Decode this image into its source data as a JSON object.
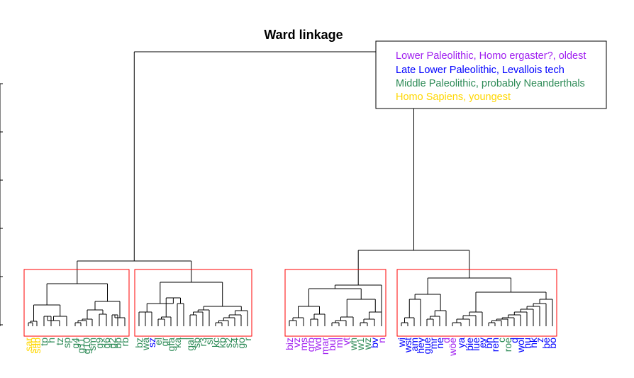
{
  "chart_data": {
    "type": "dendrogram",
    "title": "Ward linkage",
    "xlabel": "",
    "ylabel": "",
    "leaves": [
      {
        "label": "sar",
        "group": "homo_sapiens"
      },
      {
        "label": "sab",
        "group": "homo_sapiens"
      },
      {
        "label": "sab",
        "group": "homo_sapiens"
      },
      {
        "label": "tp",
        "group": "neanderthal"
      },
      {
        "label": "h",
        "group": "neanderthal"
      },
      {
        "label": "tz",
        "group": "neanderthal"
      },
      {
        "label": "sp",
        "group": "neanderthal"
      },
      {
        "label": "g4",
        "group": "neanderthal"
      },
      {
        "label": "g11",
        "group": "neanderthal"
      },
      {
        "label": "g10",
        "group": "neanderthal"
      },
      {
        "label": "sm",
        "group": "neanderthal"
      },
      {
        "label": "g9",
        "group": "neanderthal"
      },
      {
        "label": "g6",
        "group": "neanderthal"
      },
      {
        "label": "g2",
        "group": "neanderthal"
      },
      {
        "label": "bb",
        "group": "neanderthal"
      },
      {
        "label": "rb",
        "group": "neanderthal"
      },
      {
        "label": "bz",
        "group": "neanderthal"
      },
      {
        "label": "wa",
        "group": "neanderthal"
      },
      {
        "label": "sz",
        "group": "levallois"
      },
      {
        "label": "el",
        "group": "neanderthal"
      },
      {
        "label": "gr",
        "group": "neanderthal"
      },
      {
        "label": "gfa",
        "group": "neanderthal"
      },
      {
        "label": "ka",
        "group": "neanderthal"
      },
      {
        "label": "l",
        "group": "neanderthal"
      },
      {
        "label": "gal",
        "group": "neanderthal"
      },
      {
        "label": "sb",
        "group": "neanderthal"
      },
      {
        "label": "r3",
        "group": "neanderthal"
      },
      {
        "label": "sl",
        "group": "neanderthal"
      },
      {
        "label": "kc",
        "group": "neanderthal"
      },
      {
        "label": "kb",
        "group": "neanderthal"
      },
      {
        "label": "s2",
        "group": "neanderthal"
      },
      {
        "label": "s4",
        "group": "neanderthal"
      },
      {
        "label": "go",
        "group": "neanderthal"
      },
      {
        "label": "r",
        "group": "neanderthal"
      },
      {
        "label": "biz",
        "group": "lower_paleolithic"
      },
      {
        "label": "vz",
        "group": "lower_paleolithic"
      },
      {
        "label": "ms",
        "group": "lower_paleolithic"
      },
      {
        "label": "grb",
        "group": "lower_paleolithic"
      },
      {
        "label": "wd",
        "group": "lower_paleolithic"
      },
      {
        "label": "mar",
        "group": "lower_paleolithic"
      },
      {
        "label": "bul",
        "group": "lower_paleolithic"
      },
      {
        "label": "ml",
        "group": "lower_paleolithic"
      },
      {
        "label": "vt",
        "group": "lower_paleolithic"
      },
      {
        "label": "wh",
        "group": "neanderthal"
      },
      {
        "label": "w1",
        "group": "neanderthal"
      },
      {
        "label": "wz",
        "group": "neanderthal"
      },
      {
        "label": "bv",
        "group": "levallois"
      },
      {
        "label": "n",
        "group": "lower_paleolithic"
      },
      {
        "label": "wi",
        "group": "levallois"
      },
      {
        "label": "wst",
        "group": "levallois"
      },
      {
        "label": "am",
        "group": "levallois"
      },
      {
        "label": "hey",
        "group": "levallois"
      },
      {
        "label": "gue",
        "group": "levallois"
      },
      {
        "label": "mr",
        "group": "levallois"
      },
      {
        "label": "ne",
        "group": "levallois"
      },
      {
        "label": "d",
        "group": "lower_paleolithic"
      },
      {
        "label": "wöe",
        "group": "lower_paleolithic"
      },
      {
        "label": "ya",
        "group": "levallois"
      },
      {
        "label": "bie",
        "group": "levallois"
      },
      {
        "label": "lue",
        "group": "levallois"
      },
      {
        "label": "ey",
        "group": "levallois"
      },
      {
        "label": "bh",
        "group": "levallois"
      },
      {
        "label": "reh",
        "group": "levallois"
      },
      {
        "label": "c",
        "group": "neanderthal"
      },
      {
        "label": "roe",
        "group": "neanderthal"
      },
      {
        "label": "d",
        "group": "levallois"
      },
      {
        "label": "wol",
        "group": "levallois"
      },
      {
        "label": "hu",
        "group": "levallois"
      },
      {
        "label": "hk",
        "group": "levallois"
      },
      {
        "label": "z",
        "group": "levallois"
      },
      {
        "label": "be",
        "group": "levallois"
      },
      {
        "label": "bo",
        "group": "levallois"
      }
    ],
    "clusters": [
      {
        "id": 1,
        "first_leaf": 0,
        "last_leaf": 15
      },
      {
        "id": 2,
        "first_leaf": 16,
        "last_leaf": 33
      },
      {
        "id": 3,
        "first_leaf": 34,
        "last_leaf": 47
      },
      {
        "id": 4,
        "first_leaf": 48,
        "last_leaf": 71
      }
    ],
    "legend": {
      "position": "top-right",
      "items": [
        {
          "key": "lower_paleolithic",
          "label": "Lower Paleolithic, Homo ergaster?, oldest",
          "color": "#a020f0"
        },
        {
          "key": "levallois",
          "label": "Late Lower Paleolithic, Levallois tech",
          "color": "#0000ff"
        },
        {
          "key": "neanderthal",
          "label": "Middle Paleolithic, probably Neanderthals",
          "color": "#2e8b57"
        },
        {
          "key": "homo_sapiens",
          "label": "Homo Sapiens, youngest",
          "color": "#ffd700"
        }
      ]
    },
    "cluster_box_color": "#ff0000"
  }
}
